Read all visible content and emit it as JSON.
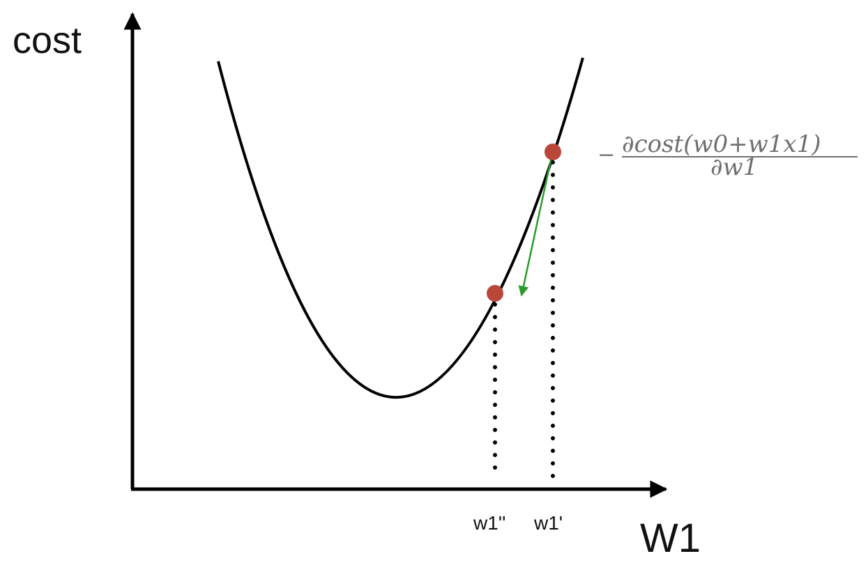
{
  "axes": {
    "y_label": "cost",
    "x_label": "W1"
  },
  "ticks": {
    "w1_new": "w1''",
    "w1_old": "w1'"
  },
  "formula": {
    "sign": "−",
    "numerator": "∂cost(w0+w1x1)",
    "denominator": "∂w1"
  },
  "colors": {
    "curve": "#000000",
    "points": "#b8473a",
    "gradient_arrow": "#2a9a2a",
    "formula": "#6f6f6f",
    "axes": "#000000"
  }
}
